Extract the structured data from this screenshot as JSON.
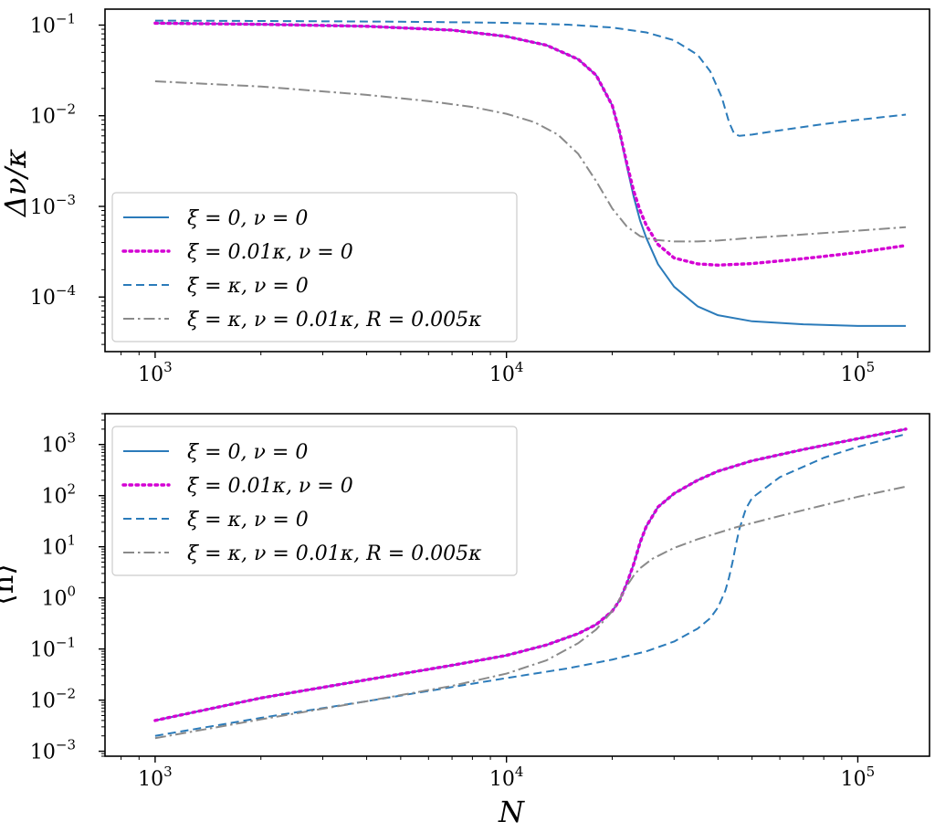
{
  "chart_data": [
    {
      "type": "line",
      "panel": "top",
      "x_scale": "log",
      "y_scale": "log",
      "xlim": [
        720,
        160000
      ],
      "ylim": [
        2.5e-05,
        0.15
      ],
      "xlabel": "",
      "ylabel": "Δν/κ",
      "x_ticks": [
        {
          "value": 1000,
          "base": "10",
          "exp": "3"
        },
        {
          "value": 10000,
          "base": "10",
          "exp": "4"
        },
        {
          "value": 100000,
          "base": "10",
          "exp": "5"
        }
      ],
      "y_ticks": [
        {
          "value": 0.1,
          "base": "10",
          "exp": "−1"
        },
        {
          "value": 0.01,
          "base": "10",
          "exp": "−2"
        },
        {
          "value": 0.001,
          "base": "10",
          "exp": "−3"
        },
        {
          "value": 0.0001,
          "base": "10",
          "exp": "−4"
        }
      ],
      "legend_position": "lower-left",
      "series": [
        {
          "name": "ξ = 0, ν = 0",
          "color": "#2b7bba",
          "style": "solid",
          "x": [
            1000,
            2000,
            4000,
            7000,
            10000,
            13000,
            16000,
            18000,
            20000,
            21000,
            22000,
            23000,
            24000,
            25000,
            27000,
            30000,
            35000,
            40000,
            50000,
            70000,
            100000,
            137000
          ],
          "y": [
            0.105,
            0.102,
            0.097,
            0.088,
            0.075,
            0.06,
            0.042,
            0.028,
            0.013,
            0.0065,
            0.0028,
            0.0013,
            0.0007,
            0.00045,
            0.00023,
            0.00013,
            7.9e-05,
            6.3e-05,
            5.4e-05,
            5e-05,
            4.8e-05,
            4.8e-05
          ]
        },
        {
          "name": "ξ = 0.01κ, ν = 0",
          "color": "#d400d4",
          "style": "dotted",
          "x": [
            1000,
            2000,
            4000,
            7000,
            10000,
            13000,
            16000,
            18000,
            20000,
            21000,
            22000,
            23000,
            24000,
            25000,
            27000,
            30000,
            35000,
            40000,
            50000,
            70000,
            100000,
            137000
          ],
          "y": [
            0.105,
            0.102,
            0.097,
            0.088,
            0.075,
            0.06,
            0.042,
            0.028,
            0.013,
            0.0066,
            0.003,
            0.0015,
            0.0009,
            0.00062,
            0.00038,
            0.00027,
            0.000232,
            0.000225,
            0.000234,
            0.000265,
            0.00031,
            0.00037
          ]
        },
        {
          "name": "ξ = κ, ν = 0",
          "color": "#2b7bba",
          "style": "dashed",
          "x": [
            1000,
            2000,
            5000,
            10000,
            15000,
            20000,
            25000,
            30000,
            35000,
            38000,
            41000,
            43000,
            44500,
            46000,
            50000,
            60000,
            80000,
            100000,
            137000
          ],
          "y": [
            0.112,
            0.111,
            0.109,
            0.106,
            0.101,
            0.094,
            0.083,
            0.068,
            0.047,
            0.031,
            0.016,
            0.0085,
            0.0063,
            0.006,
            0.0062,
            0.0069,
            0.0081,
            0.009,
            0.0103
          ]
        },
        {
          "name": "ξ = κ, ν = 0.01κ, R = 0.005κ",
          "color": "#8a8a8a",
          "style": "dashdot",
          "x": [
            1000,
            2000,
            4000,
            6000,
            8000,
            10000,
            12000,
            14000,
            16000,
            18000,
            20000,
            22000,
            24000,
            26000,
            30000,
            35000,
            40000,
            50000,
            70000,
            100000,
            137000
          ],
          "y": [
            0.024,
            0.021,
            0.017,
            0.0145,
            0.0125,
            0.0105,
            0.0085,
            0.0062,
            0.0038,
            0.0019,
            0.00095,
            0.0006,
            0.00047,
            0.00043,
            0.00041,
            0.00041,
            0.00042,
            0.00045,
            0.00049,
            0.00054,
            0.00059
          ]
        }
      ],
      "legend": [
        "ξ = 0, ν = 0",
        "ξ = 0.01κ, ν = 0",
        "ξ = κ, ν = 0",
        "ξ = κ, ν = 0.01κ, R = 0.005κ"
      ]
    },
    {
      "type": "line",
      "panel": "bottom",
      "x_scale": "log",
      "y_scale": "log",
      "xlim": [
        720,
        160000
      ],
      "ylim": [
        0.0008,
        4000
      ],
      "xlabel": "N",
      "ylabel": "⟨n⟩",
      "x_ticks": [
        {
          "value": 1000,
          "base": "10",
          "exp": "3"
        },
        {
          "value": 10000,
          "base": "10",
          "exp": "4"
        },
        {
          "value": 100000,
          "base": "10",
          "exp": "5"
        }
      ],
      "y_ticks": [
        {
          "value": 1000,
          "base": "10",
          "exp": "3"
        },
        {
          "value": 100,
          "base": "10",
          "exp": "2"
        },
        {
          "value": 10,
          "base": "10",
          "exp": "1"
        },
        {
          "value": 1,
          "base": "10",
          "exp": "0"
        },
        {
          "value": 0.1,
          "base": "10",
          "exp": "−1"
        },
        {
          "value": 0.01,
          "base": "10",
          "exp": "−2"
        },
        {
          "value": 0.001,
          "base": "10",
          "exp": "−3"
        }
      ],
      "legend_position": "upper-left",
      "series": [
        {
          "name": "ξ = 0, ν = 0",
          "color": "#2b7bba",
          "style": "solid",
          "x": [
            1000,
            2000,
            4000,
            7000,
            10000,
            13000,
            16000,
            18000,
            20000,
            21000,
            22000,
            23000,
            24000,
            25000,
            27000,
            30000,
            35000,
            40000,
            50000,
            70000,
            100000,
            137000
          ],
          "y": [
            0.004,
            0.011,
            0.025,
            0.048,
            0.075,
            0.12,
            0.2,
            0.3,
            0.55,
            0.9,
            1.9,
            4.5,
            12,
            25,
            60,
            110,
            200,
            300,
            480,
            800,
            1300,
            2000
          ]
        },
        {
          "name": "ξ = 0.01κ, ν = 0",
          "color": "#d400d4",
          "style": "dotted",
          "x": [
            1000,
            2000,
            4000,
            7000,
            10000,
            13000,
            16000,
            18000,
            20000,
            21000,
            22000,
            23000,
            24000,
            25000,
            27000,
            30000,
            35000,
            40000,
            50000,
            70000,
            100000,
            137000
          ],
          "y": [
            0.004,
            0.011,
            0.025,
            0.048,
            0.075,
            0.12,
            0.2,
            0.3,
            0.55,
            0.9,
            1.9,
            4.5,
            12,
            25,
            60,
            110,
            200,
            300,
            480,
            800,
            1300,
            2000
          ]
        },
        {
          "name": "ξ = κ, ν = 0",
          "color": "#2b7bba",
          "style": "dashed",
          "x": [
            1000,
            2000,
            4000,
            7000,
            10000,
            15000,
            20000,
            25000,
            30000,
            35000,
            38000,
            40000,
            42000,
            43000,
            44000,
            45000,
            46000,
            48000,
            50000,
            60000,
            80000,
            100000,
            137000
          ],
          "y": [
            0.002,
            0.0045,
            0.0095,
            0.018,
            0.027,
            0.042,
            0.062,
            0.09,
            0.14,
            0.25,
            0.4,
            0.65,
            1.4,
            2.5,
            5,
            11,
            22,
            55,
            90,
            230,
            550,
            900,
            1600
          ]
        },
        {
          "name": "ξ = κ, ν = 0.01κ, R = 0.005κ",
          "color": "#8a8a8a",
          "style": "dashdot",
          "x": [
            1000,
            2000,
            4000,
            7000,
            10000,
            13000,
            16000,
            18000,
            20000,
            21000,
            22000,
            23000,
            24000,
            26000,
            30000,
            35000,
            45000,
            60000,
            80000,
            100000,
            137000
          ],
          "y": [
            0.0018,
            0.0042,
            0.0095,
            0.019,
            0.033,
            0.06,
            0.13,
            0.24,
            0.55,
            0.95,
            1.7,
            2.7,
            3.8,
            5.8,
            9.5,
            14,
            24,
            40,
            65,
            95,
            150
          ]
        }
      ],
      "legend": [
        "ξ = 0, ν = 0",
        "ξ = 0.01κ, ν = 0",
        "ξ = κ, ν = 0",
        "ξ = κ, ν = 0.01κ, R = 0.005κ"
      ]
    }
  ]
}
